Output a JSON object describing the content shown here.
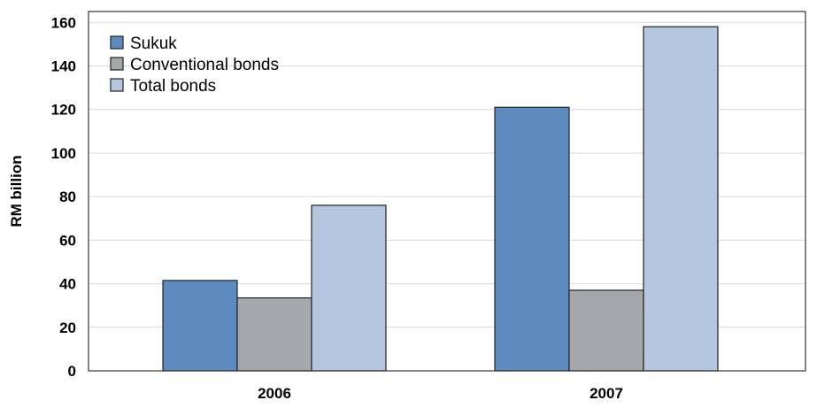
{
  "chart_data": {
    "type": "bar",
    "title": "",
    "xlabel": "",
    "ylabel": "RM billion",
    "categories": [
      "2006",
      "2007"
    ],
    "ylim": [
      0,
      160
    ],
    "yticks": [
      0,
      20,
      40,
      60,
      80,
      100,
      120,
      140,
      160
    ],
    "grid": true,
    "legend_position": "top-left",
    "series": [
      {
        "name": "Sukuk",
        "color": "#5b8bbf",
        "values": [
          41.5,
          121
        ]
      },
      {
        "name": "Conventional bonds",
        "color": "#a4a8ab",
        "values": [
          33.5,
          37
        ]
      },
      {
        "name": "Total bonds",
        "color": "#b3c6de",
        "values": [
          76,
          158
        ]
      }
    ]
  }
}
